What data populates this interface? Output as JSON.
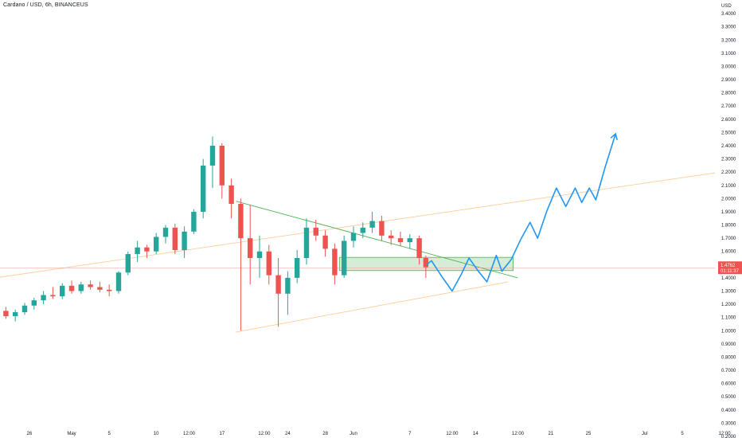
{
  "title": "Cardano / USD, 6h, BINANCEUS",
  "colors": {
    "up": "#26a69a",
    "down": "#ef5350",
    "projection": "#2196f3",
    "channel": "#ffcc99",
    "trendline": "#4caf50",
    "zone_fill": "#c8e6c9",
    "zone_border": "#4caf50",
    "price_line": "#ef9a9a",
    "price_label_bg": "#ef5350"
  },
  "chart_data": {
    "type": "candlestick",
    "instrument": "Cardano / USD",
    "interval": "6h",
    "exchange": "BINANCEUS",
    "y_axis": {
      "unit_label": "USD",
      "ticks": [
        "3.4000",
        "3.3000",
        "3.2000",
        "3.1000",
        "3.0000",
        "2.9000",
        "2.8000",
        "2.7000",
        "2.6000",
        "2.5000",
        "2.4000",
        "2.3000",
        "2.2000",
        "2.1000",
        "2.0000",
        "1.9000",
        "1.8000",
        "1.7000",
        "1.6000",
        "1.4000",
        "1.3000",
        "1.2000",
        "1.1000",
        "1.0000",
        "0.9000",
        "0.8000",
        "0.7000",
        "0.6000",
        "0.5000",
        "0.4000",
        "0.3000",
        "0.2000"
      ],
      "ylim": [
        0.1,
        3.5
      ]
    },
    "x_axis": {
      "ticks": [
        "26",
        "May",
        "5",
        "10",
        "12:00",
        "17",
        "12:00",
        "24",
        "28",
        "Jun",
        "7",
        "12:00",
        "14",
        "12:00",
        "21",
        "25",
        "Jul",
        "5",
        "12:00"
      ],
      "tick_days": [
        -4.5,
        0,
        4,
        9,
        12.5,
        16,
        20.5,
        23,
        27,
        30,
        36,
        40.5,
        43,
        47.5,
        51,
        55,
        61,
        65,
        69.5
      ]
    },
    "last_price": {
      "value": "1.4762",
      "countdown": "01:11:37"
    },
    "candles": [
      {
        "day": -9,
        "o": 1.1,
        "h": 1.14,
        "l": 1.02,
        "c": 1.12
      },
      {
        "day": -8,
        "o": 1.12,
        "h": 1.17,
        "l": 1.09,
        "c": 1.15
      },
      {
        "day": -7,
        "o": 1.15,
        "h": 1.18,
        "l": 1.09,
        "c": 1.11
      },
      {
        "day": -6,
        "o": 1.11,
        "h": 1.16,
        "l": 1.07,
        "c": 1.14
      },
      {
        "day": -5,
        "o": 1.14,
        "h": 1.21,
        "l": 1.12,
        "c": 1.19
      },
      {
        "day": -4,
        "o": 1.19,
        "h": 1.25,
        "l": 1.16,
        "c": 1.23
      },
      {
        "day": -3,
        "o": 1.23,
        "h": 1.3,
        "l": 1.2,
        "c": 1.27
      },
      {
        "day": -2,
        "o": 1.27,
        "h": 1.33,
        "l": 1.24,
        "c": 1.26
      },
      {
        "day": -1,
        "o": 1.26,
        "h": 1.36,
        "l": 1.24,
        "c": 1.34
      },
      {
        "day": 0,
        "o": 1.34,
        "h": 1.38,
        "l": 1.28,
        "c": 1.3
      },
      {
        "day": 1,
        "o": 1.3,
        "h": 1.37,
        "l": 1.28,
        "c": 1.35
      },
      {
        "day": 2,
        "o": 1.35,
        "h": 1.38,
        "l": 1.31,
        "c": 1.33
      },
      {
        "day": 3,
        "o": 1.33,
        "h": 1.37,
        "l": 1.29,
        "c": 1.31
      },
      {
        "day": 4,
        "o": 1.31,
        "h": 1.35,
        "l": 1.26,
        "c": 1.3
      },
      {
        "day": 5,
        "o": 1.3,
        "h": 1.45,
        "l": 1.28,
        "c": 1.44
      },
      {
        "day": 6,
        "o": 1.44,
        "h": 1.6,
        "l": 1.42,
        "c": 1.58
      },
      {
        "day": 7,
        "o": 1.58,
        "h": 1.68,
        "l": 1.52,
        "c": 1.63
      },
      {
        "day": 8,
        "o": 1.63,
        "h": 1.65,
        "l": 1.55,
        "c": 1.6
      },
      {
        "day": 9,
        "o": 1.6,
        "h": 1.74,
        "l": 1.58,
        "c": 1.71
      },
      {
        "day": 10,
        "o": 1.71,
        "h": 1.8,
        "l": 1.66,
        "c": 1.78
      },
      {
        "day": 11,
        "o": 1.78,
        "h": 1.81,
        "l": 1.58,
        "c": 1.61
      },
      {
        "day": 12,
        "o": 1.61,
        "h": 1.79,
        "l": 1.55,
        "c": 1.75
      },
      {
        "day": 13,
        "o": 1.75,
        "h": 1.92,
        "l": 1.73,
        "c": 1.9
      },
      {
        "day": 14,
        "o": 1.9,
        "h": 2.3,
        "l": 1.85,
        "c": 2.25
      },
      {
        "day": 15,
        "o": 2.25,
        "h": 2.47,
        "l": 2.08,
        "c": 2.4
      },
      {
        "day": 16,
        "o": 2.4,
        "h": 2.42,
        "l": 2.0,
        "c": 2.1
      },
      {
        "day": 17,
        "o": 2.1,
        "h": 2.15,
        "l": 1.85,
        "c": 1.96
      },
      {
        "day": 18,
        "o": 1.96,
        "h": 2.0,
        "l": 1.0,
        "c": 1.7
      },
      {
        "day": 19,
        "o": 1.7,
        "h": 1.95,
        "l": 1.35,
        "c": 1.55
      },
      {
        "day": 20,
        "o": 1.55,
        "h": 1.72,
        "l": 1.4,
        "c": 1.6
      },
      {
        "day": 21,
        "o": 1.6,
        "h": 1.65,
        "l": 1.35,
        "c": 1.42
      },
      {
        "day": 22,
        "o": 1.42,
        "h": 1.55,
        "l": 1.03,
        "c": 1.28
      },
      {
        "day": 23,
        "o": 1.28,
        "h": 1.45,
        "l": 1.12,
        "c": 1.4
      },
      {
        "day": 24,
        "o": 1.4,
        "h": 1.61,
        "l": 1.36,
        "c": 1.55
      },
      {
        "day": 25,
        "o": 1.55,
        "h": 1.85,
        "l": 1.5,
        "c": 1.78
      },
      {
        "day": 26,
        "o": 1.78,
        "h": 1.84,
        "l": 1.68,
        "c": 1.72
      },
      {
        "day": 27,
        "o": 1.72,
        "h": 1.76,
        "l": 1.56,
        "c": 1.62
      },
      {
        "day": 28,
        "o": 1.62,
        "h": 1.66,
        "l": 1.35,
        "c": 1.42
      },
      {
        "day": 29,
        "o": 1.42,
        "h": 1.72,
        "l": 1.4,
        "c": 1.68
      },
      {
        "day": 30,
        "o": 1.68,
        "h": 1.79,
        "l": 1.63,
        "c": 1.74
      },
      {
        "day": 31,
        "o": 1.74,
        "h": 1.82,
        "l": 1.7,
        "c": 1.78
      },
      {
        "day": 32,
        "o": 1.78,
        "h": 1.9,
        "l": 1.74,
        "c": 1.83
      },
      {
        "day": 33,
        "o": 1.83,
        "h": 1.87,
        "l": 1.68,
        "c": 1.72
      },
      {
        "day": 34,
        "o": 1.72,
        "h": 1.76,
        "l": 1.65,
        "c": 1.7
      },
      {
        "day": 35,
        "o": 1.7,
        "h": 1.75,
        "l": 1.64,
        "c": 1.67
      },
      {
        "day": 36,
        "o": 1.67,
        "h": 1.73,
        "l": 1.62,
        "c": 1.7
      },
      {
        "day": 37,
        "o": 1.7,
        "h": 1.72,
        "l": 1.5,
        "c": 1.55
      },
      {
        "day": 37.7,
        "o": 1.55,
        "h": 1.57,
        "l": 1.4,
        "c": 1.48
      }
    ],
    "annotations": {
      "descending_trendline": {
        "from": [
          17.5,
          1.98
        ],
        "to": [
          47.5,
          1.4
        ]
      },
      "upper_channel": {
        "from": [
          -10,
          1.38
        ],
        "to": [
          70,
          2.21
        ]
      },
      "lower_channel": {
        "from": [
          17.5,
          0.99
        ],
        "to": [
          46.5,
          1.37
        ]
      },
      "support_zone": {
        "x0": 28.5,
        "x1": 47,
        "y_low": 1.455,
        "y_high": 1.555
      },
      "projection_path": [
        [
          37.8,
          1.5
        ],
        [
          38.3,
          1.53
        ],
        [
          39.5,
          1.4
        ],
        [
          40.5,
          1.3
        ],
        [
          41.5,
          1.43
        ],
        [
          42.3,
          1.55
        ],
        [
          43.3,
          1.45
        ],
        [
          44.2,
          1.37
        ],
        [
          45.2,
          1.57
        ],
        [
          45.8,
          1.45
        ],
        [
          46.8,
          1.54
        ],
        [
          47.8,
          1.69
        ],
        [
          48.8,
          1.82
        ],
        [
          49.6,
          1.7
        ],
        [
          50.6,
          1.91
        ],
        [
          51.6,
          2.08
        ],
        [
          52.6,
          1.94
        ],
        [
          53.6,
          2.08
        ],
        [
          54.3,
          1.97
        ],
        [
          55.1,
          2.08
        ],
        [
          55.8,
          1.99
        ],
        [
          56.8,
          2.24
        ],
        [
          57.9,
          2.49
        ]
      ]
    }
  }
}
